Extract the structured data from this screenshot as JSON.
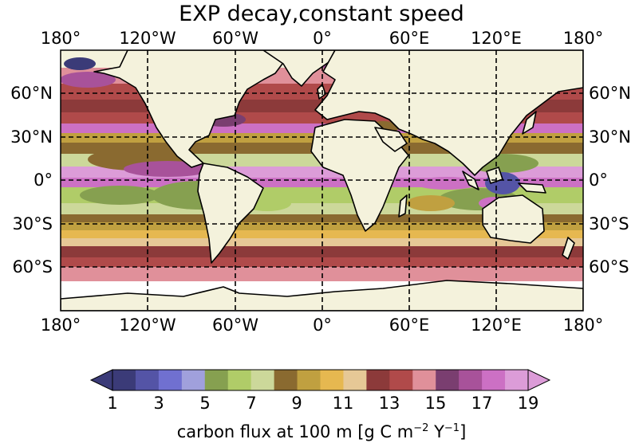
{
  "title": "EXP decay,constant speed",
  "lon_labels": [
    "180°",
    "120°W",
    "60°W",
    "0°",
    "60°E",
    "120°E",
    "180°"
  ],
  "lat_labels": [
    "60°N",
    "30°N",
    "0°",
    "30°S",
    "60°S"
  ],
  "colorbar": {
    "ticks": [
      "1",
      "3",
      "5",
      "7",
      "9",
      "11",
      "13",
      "15",
      "17",
      "19"
    ],
    "label_main": "carbon flux at 100 m [g C m",
    "label_exp1": "−2",
    "label_mid": " Y",
    "label_exp2": "−1",
    "label_end": "]",
    "colors": [
      "#3b3b78",
      "#5454a6",
      "#7070d0",
      "#a0a0dc",
      "#86a050",
      "#b0cc68",
      "#ccd89a",
      "#8a6a30",
      "#c0a040",
      "#e6b850",
      "#e6c896",
      "#8c3a3a",
      "#b04a4a",
      "#e0909a",
      "#7a3e70",
      "#a8529a",
      "#cc70c4",
      "#dc9cd8"
    ],
    "range": [
      1,
      19
    ]
  },
  "colors": {
    "land": "#f4f2dc",
    "coast": "#000000",
    "grid": "#000000"
  }
}
